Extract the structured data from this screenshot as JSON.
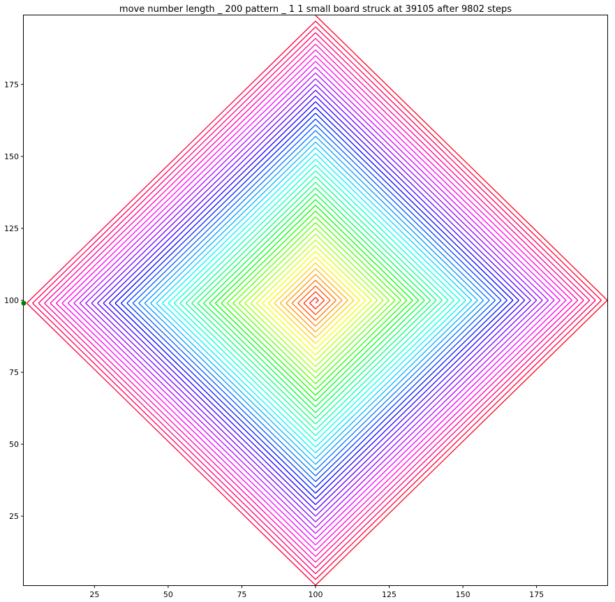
{
  "chart_data": {
    "type": "line",
    "title": "move number length _ 200 pattern _ 1 1 small board struck at 39105 after 9802 steps",
    "xlabel": "",
    "ylabel": "",
    "xlim": [
      1,
      199
    ],
    "ylim": [
      1,
      199
    ],
    "x_ticks": [
      25,
      50,
      75,
      100,
      125,
      150,
      175
    ],
    "y_ticks": [
      25,
      50,
      75,
      100,
      125,
      150,
      175
    ],
    "grid": false,
    "series": [
      {
        "description": "square spiral (diamond) path starting at center, step 1 per move pair, colored by hsv colormap from red at center to magenta/red at outer edge",
        "center": [
          100,
          99
        ],
        "colormap": "hsv",
        "outer_vertices": {
          "top": [
            100,
            198
          ],
          "right": [
            198,
            99
          ],
          "bottom": [
            100,
            1
          ],
          "left": [
            1,
            99
          ]
        }
      }
    ],
    "markers": [
      {
        "label": "end point",
        "x": 1,
        "y": 99,
        "color": "#008000"
      }
    ]
  }
}
